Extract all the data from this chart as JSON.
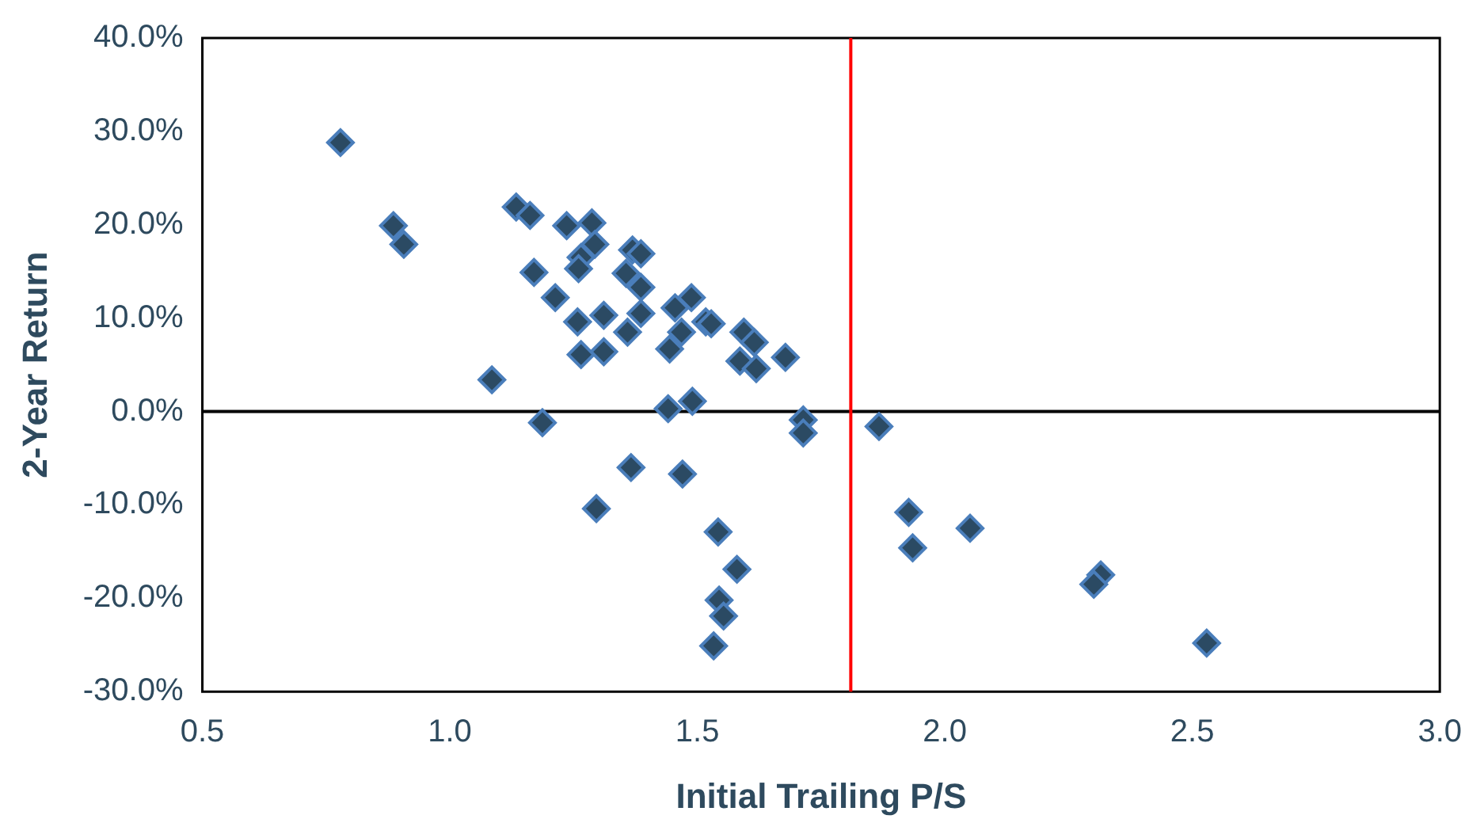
{
  "chart_data": {
    "type": "scatter",
    "xlabel": "Initial Trailing P/S",
    "ylabel": "2-Year Return",
    "marker": "diamond",
    "grid": false,
    "legend": false,
    "xlim": [
      0.5,
      3.0
    ],
    "ylim": [
      -30,
      40
    ],
    "xticks": [
      0.5,
      {
        "value": 1,
        "label": "1.0"
      },
      1.5,
      {
        "value": 2,
        "label": "2.0"
      },
      2.5,
      {
        "value": 3,
        "label": "3.0"
      }
    ],
    "yticks": [
      {
        "value": -30,
        "label": "-30.0%"
      },
      {
        "value": -20,
        "label": "-20.0%"
      },
      {
        "value": -10,
        "label": "-10.0%"
      },
      {
        "value": 0,
        "label": "0.0%"
      },
      {
        "value": 10,
        "label": "10.0%"
      },
      {
        "value": 20,
        "label": "20.0%"
      },
      {
        "value": 30,
        "label": "30.0%"
      },
      {
        "value": 40,
        "label": "40.0%"
      }
    ],
    "ref_lines": [
      {
        "axis": "y",
        "value": 0,
        "color": "#000000"
      },
      {
        "axis": "x",
        "value": 1.81,
        "color": "#ff0000"
      }
    ],
    "series": [
      {
        "color": "#2b4a63",
        "x": [
          0.779,
          0.886,
          0.907,
          1.134,
          1.162,
          1.236,
          1.287,
          1.293,
          1.265,
          1.26,
          1.17,
          1.369,
          1.386,
          1.356,
          1.386,
          1.213,
          1.258,
          1.311,
          1.386,
          1.359,
          1.455,
          1.488,
          1.517,
          1.528,
          1.468,
          1.444,
          1.265,
          1.311,
          1.594,
          1.615,
          1.586,
          1.619,
          1.678,
          1.085,
          1.441,
          1.49,
          1.187,
          1.714,
          1.714,
          1.867,
          1.366,
          1.47,
          1.296,
          1.542,
          1.58,
          1.544,
          1.553,
          1.533,
          1.927,
          1.935,
          2.051,
          2.315,
          2.301,
          2.529
        ],
        "values": [
          28.8,
          19.9,
          17.9,
          21.9,
          21.0,
          19.9,
          20.2,
          17.9,
          16.5,
          15.3,
          14.9,
          17.3,
          16.9,
          14.8,
          13.3,
          12.2,
          9.6,
          10.3,
          10.5,
          8.5,
          11.1,
          12.2,
          9.6,
          9.4,
          8.5,
          6.7,
          6.1,
          6.4,
          8.5,
          7.4,
          5.4,
          4.6,
          5.8,
          3.4,
          0.3,
          1.1,
          -1.2,
          -0.9,
          -2.3,
          -1.6,
          -6.0,
          -6.7,
          -10.4,
          -12.9,
          -16.9,
          -20.2,
          -21.9,
          -25.1,
          -10.8,
          -14.6,
          -12.5,
          -17.5,
          -18.5,
          -24.8
        ]
      }
    ]
  }
}
